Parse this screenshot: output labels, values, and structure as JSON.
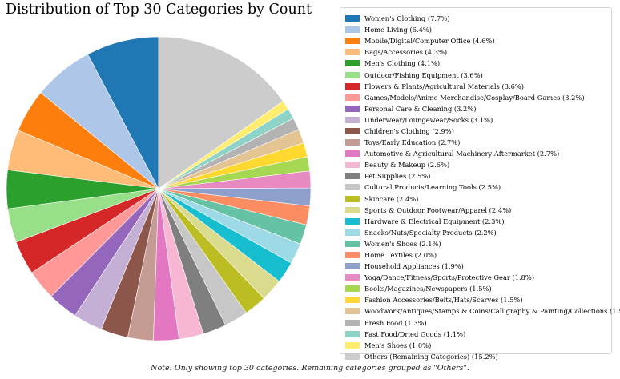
{
  "chart_data": {
    "type": "pie",
    "title": "Distribution of Top 30 Categories by Count",
    "note": "Note: Only showing top 30 categories. Remaining categories grouped as \"Others\".",
    "legend_position": "right",
    "start_angle": "12 o'clock",
    "direction": "counterclockwise",
    "slices": [
      {
        "label": "Women's Clothing (7.7%)",
        "value": 7.7,
        "color": "#1f77b4"
      },
      {
        "label": "Home Living (6.4%)",
        "value": 6.4,
        "color": "#aec7e8"
      },
      {
        "label": "Mobile/Digital/Computer Office (4.6%)",
        "value": 4.6,
        "color": "#ff7f0e"
      },
      {
        "label": "Bags/Accessories (4.3%)",
        "value": 4.3,
        "color": "#ffbb78"
      },
      {
        "label": "Men's Clothing (4.1%)",
        "value": 4.1,
        "color": "#2ca02c"
      },
      {
        "label": "Outdoor/Fishing Equipment (3.6%)",
        "value": 3.6,
        "color": "#98df8a"
      },
      {
        "label": "Flowers & Plants/Agricultural Materials (3.6%)",
        "value": 3.6,
        "color": "#d62728"
      },
      {
        "label": "Games/Models/Anime Merchandise/Cosplay/Board Games (3.2%)",
        "value": 3.2,
        "color": "#ff9896"
      },
      {
        "label": "Personal Care & Cleaning (3.2%)",
        "value": 3.2,
        "color": "#9467bd"
      },
      {
        "label": "Underwear/Loungewear/Socks (3.1%)",
        "value": 3.1,
        "color": "#c5b0d5"
      },
      {
        "label": "Children's Clothing (2.9%)",
        "value": 2.9,
        "color": "#8c564b"
      },
      {
        "label": "Toys/Early Education (2.7%)",
        "value": 2.7,
        "color": "#c49c94"
      },
      {
        "label": "Automotive & Agricultural Machinery Aftermarket (2.7%)",
        "value": 2.7,
        "color": "#e377c2"
      },
      {
        "label": "Beauty & Makeup (2.6%)",
        "value": 2.6,
        "color": "#f7b6d2"
      },
      {
        "label": "Pet Supplies (2.5%)",
        "value": 2.5,
        "color": "#7f7f7f"
      },
      {
        "label": "Cultural Products/Learning Tools (2.5%)",
        "value": 2.5,
        "color": "#c7c7c7"
      },
      {
        "label": "Skincare (2.4%)",
        "value": 2.4,
        "color": "#bcbd22"
      },
      {
        "label": "Sports & Outdoor Footwear/Apparel (2.4%)",
        "value": 2.4,
        "color": "#dbdb8d"
      },
      {
        "label": "Hardware & Electrical Equipment (2.3%)",
        "value": 2.3,
        "color": "#17becf"
      },
      {
        "label": "Snacks/Nuts/Specialty Products (2.2%)",
        "value": 2.2,
        "color": "#9edae5"
      },
      {
        "label": "Women's Shoes (2.1%)",
        "value": 2.1,
        "color": "#66c2a5"
      },
      {
        "label": "Home Textiles (2.0%)",
        "value": 2.0,
        "color": "#fc8d62"
      },
      {
        "label": "Household Appliances (1.9%)",
        "value": 1.9,
        "color": "#8da0cb"
      },
      {
        "label": "Yoga/Dance/Fitness/Sports/Protective Gear (1.8%)",
        "value": 1.8,
        "color": "#e78ac3"
      },
      {
        "label": "Books/Magazines/Newspapers (1.5%)",
        "value": 1.5,
        "color": "#a6d854"
      },
      {
        "label": "Fashion Accessories/Belts/Hats/Scarves (1.5%)",
        "value": 1.5,
        "color": "#ffd92f"
      },
      {
        "label": "Woodwork/Antiques/Stamps & Coins/Calligraphy & Painting/Collections (1.5%)",
        "value": 1.5,
        "color": "#e5c494"
      },
      {
        "label": "Fresh Food (1.3%)",
        "value": 1.3,
        "color": "#b3b3b3"
      },
      {
        "label": "Fast Food/Dried Goods (1.1%)",
        "value": 1.1,
        "color": "#8dd3c7"
      },
      {
        "label": "Men's Shoes (1.0%)",
        "value": 1.0,
        "color": "#ffed6f"
      },
      {
        "label": "Others (Remaining Categories) (15.2%)",
        "value": 15.2,
        "color": "#cccccc"
      }
    ]
  }
}
